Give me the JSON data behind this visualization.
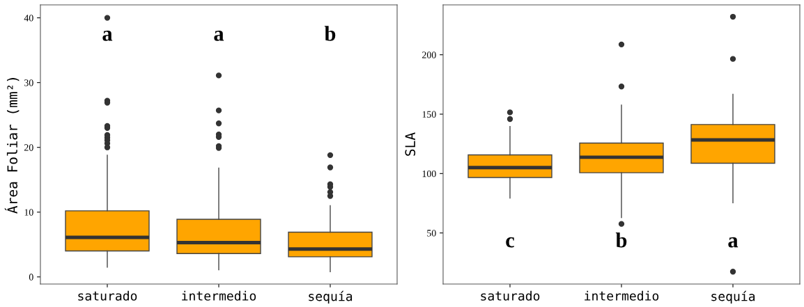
{
  "chart_data": [
    {
      "type": "box",
      "ylabel": "Área Foliar (mm²)",
      "categories": [
        "saturado",
        "intermedio",
        "sequía"
      ],
      "ylim": [
        -1.1,
        42
      ],
      "yticks": [
        0,
        10,
        20,
        30,
        40
      ],
      "series": [
        {
          "color": "#ffa500",
          "boxes": [
            {
              "low": 1.5,
              "q1": 4.0,
              "median": 6.1,
              "q3": 10.2,
              "high": 18.8,
              "outliers": [
                40.0,
                27.2,
                26.9,
                23.3,
                23.0,
                21.9,
                21.5,
                21.1,
                20.6,
                20.0
              ]
            },
            {
              "low": 1.1,
              "q1": 3.6,
              "median": 5.3,
              "q3": 8.9,
              "high": 16.8,
              "outliers": [
                31.1,
                25.7,
                23.7,
                22.0,
                21.6,
                20.2,
                19.9
              ]
            },
            {
              "low": 0.8,
              "q1": 3.1,
              "median": 4.3,
              "q3": 6.9,
              "high": 11.0,
              "outliers": [
                18.8,
                16.9,
                14.3,
                13.9,
                13.1,
                12.5
              ]
            }
          ]
        }
      ],
      "annotations": [
        "a",
        "a",
        "b"
      ]
    },
    {
      "type": "box",
      "ylabel": "SLA",
      "categories": [
        "saturado",
        "intermedio",
        "sequía"
      ],
      "ylim": [
        7,
        242
      ],
      "yticks": [
        50,
        100,
        150,
        200
      ],
      "series": [
        {
          "color": "#ffa500",
          "boxes": [
            {
              "low": 79.3,
              "q1": 96.7,
              "median": 105,
              "q3": 115.7,
              "high": 139.6,
              "outliers": [
                151.5,
                145.9
              ]
            },
            {
              "low": 63,
              "q1": 100.7,
              "median": 113.7,
              "q3": 125.7,
              "high": 157.6,
              "outliers": [
                208.7,
                173.3,
                57.6
              ]
            },
            {
              "low": 75.4,
              "q1": 108.7,
              "median": 128.3,
              "q3": 141.3,
              "high": 166.7,
              "outliers": [
                232,
                196.5,
                17.4
              ]
            }
          ]
        }
      ],
      "annotations": [
        "c",
        "b",
        "a"
      ]
    }
  ]
}
